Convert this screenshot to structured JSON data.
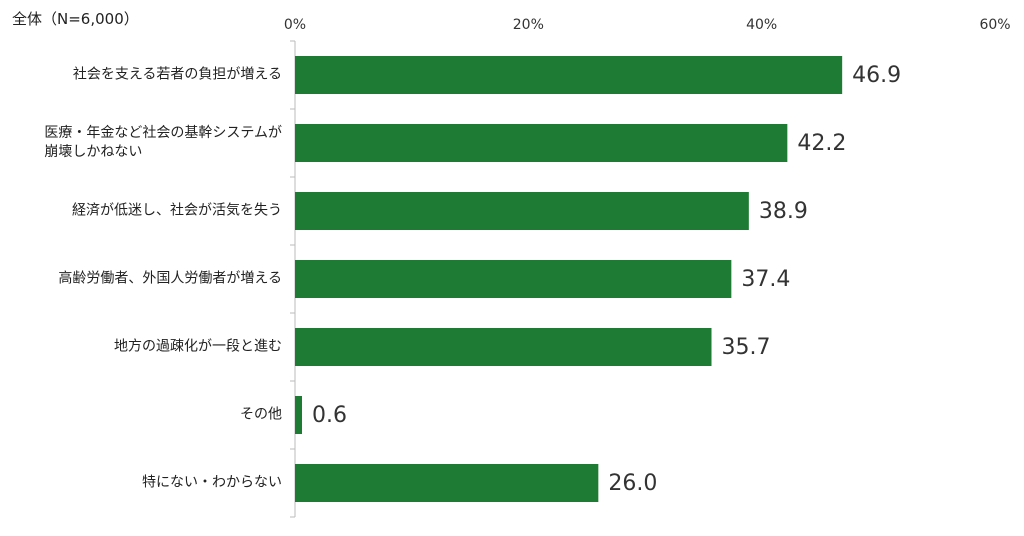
{
  "chart_data": {
    "type": "bar",
    "orientation": "horizontal",
    "title": "全体（N=6,000）",
    "categories": [
      "社会を支える若者の負担が増える",
      "医療・年金など社会の基幹システムが\n崩壊しかねない",
      "経済が低迷し、社会が活気を失う",
      "高齢労働者、外国人労働者が増える",
      "地方の過疎化が一段と進む",
      "その他",
      "特にない・わからない"
    ],
    "values": [
      46.9,
      42.2,
      38.9,
      37.4,
      35.7,
      0.6,
      26.0
    ],
    "value_labels": [
      "46.9",
      "42.2",
      "38.9",
      "37.4",
      "35.7",
      "0.6",
      "26.0"
    ],
    "color": "#1e7b34",
    "xlim": [
      0,
      60
    ],
    "xticks": [
      {
        "value": 0,
        "label": "0%"
      },
      {
        "value": 20,
        "label": "20%"
      },
      {
        "value": 40,
        "label": "40%"
      },
      {
        "value": 60,
        "label": "60%"
      }
    ],
    "grid": false
  }
}
